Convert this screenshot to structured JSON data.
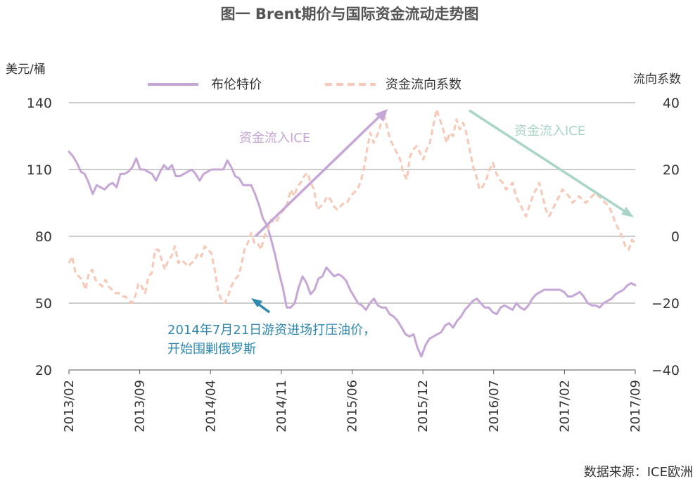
{
  "chart_data": {
    "type": "line",
    "title": "图一 Brent期价与国际资金流动走势图",
    "left_unit": "美元/桶",
    "right_unit": "流向系数",
    "left_axis": {
      "min": 20,
      "max": 140,
      "ticks": [
        140,
        110,
        80,
        50,
        20
      ]
    },
    "right_axis": {
      "min": -40,
      "max": 40,
      "ticks": [
        40,
        20,
        0,
        -20,
        -40
      ],
      "tick_labels": [
        "40",
        "20",
        "0",
        "−20",
        "−40"
      ]
    },
    "x_labels": [
      "2013/02",
      "2013/09",
      "2014/04",
      "2014/11",
      "2015/06",
      "2015/12",
      "2016/07",
      "2017/02",
      "2017/09"
    ],
    "source": "数据来源：ICE欧洲",
    "series": [
      {
        "name": "布伦特价",
        "axis": "left",
        "color": "#c6a6d6",
        "style": "solid",
        "values": [
          118,
          116,
          113,
          109,
          108,
          104,
          99,
          103,
          102,
          101,
          103,
          104,
          102,
          108,
          108,
          109,
          111,
          115,
          110,
          110,
          109,
          108,
          105,
          109,
          112,
          110,
          112,
          107,
          107,
          108,
          109,
          110,
          108,
          105,
          108,
          109,
          110,
          110,
          110,
          110,
          114,
          111,
          107,
          106,
          103,
          103,
          103,
          99,
          94,
          88,
          85,
          79,
          72,
          64,
          57,
          48,
          48,
          50,
          57,
          62,
          59,
          54,
          56,
          61,
          62,
          66,
          64,
          62,
          63,
          62,
          60,
          56,
          53,
          50,
          49,
          47,
          50,
          52,
          49,
          48,
          48,
          45,
          44,
          42,
          39,
          36,
          35,
          36,
          30,
          26,
          31,
          34,
          35,
          36,
          37,
          40,
          41,
          39,
          42,
          44,
          47,
          49,
          51,
          52,
          50,
          48,
          48,
          46,
          45,
          48,
          49,
          48,
          47,
          50,
          48,
          47,
          49,
          52,
          54,
          55,
          56,
          56,
          56,
          56,
          56,
          55,
          53,
          53,
          54,
          55,
          53,
          50,
          49,
          49,
          48,
          50,
          51,
          52,
          54,
          55,
          56,
          58,
          59,
          58
        ]
      },
      {
        "name": "资金流向系数",
        "axis": "right",
        "color": "#f8c7b5",
        "style": "dashed",
        "values": [
          -8,
          -6,
          -11,
          -12,
          -13,
          -16,
          -11,
          -10,
          -13,
          -14,
          -15,
          -13,
          -15,
          -16,
          -17,
          -17,
          -18,
          -18,
          -19,
          -20,
          -18,
          -14,
          -15,
          -17,
          -12,
          -11,
          -4,
          -4,
          -7,
          -10,
          -7,
          -6,
          -3,
          -8,
          -7,
          -8,
          -9,
          -8,
          -7,
          -5,
          -6,
          -3,
          -4,
          -5,
          -10,
          -16,
          -19,
          -20,
          -18,
          -15,
          -13,
          -12,
          -9,
          -4,
          -2,
          1,
          -2,
          -2,
          -4,
          0,
          2,
          5,
          4,
          5,
          7,
          8,
          10,
          14,
          12,
          15,
          16,
          18,
          19,
          16,
          14,
          8,
          9,
          10,
          12,
          11,
          9,
          8,
          9,
          10,
          10,
          12,
          13,
          14,
          16,
          20,
          26,
          31,
          28,
          30,
          33,
          37,
          33,
          29,
          27,
          25,
          23,
          19,
          17,
          24,
          26,
          27,
          25,
          23,
          26,
          28,
          33,
          38,
          35,
          32,
          28,
          31,
          30,
          35,
          32,
          34,
          31,
          26,
          21,
          18,
          14,
          15,
          17,
          20,
          22,
          19,
          17,
          16,
          14,
          15,
          16,
          12,
          10,
          8,
          6,
          9,
          12,
          14,
          16,
          12,
          8,
          6,
          8,
          10,
          12,
          14,
          13,
          12,
          10,
          11,
          12,
          11,
          10,
          11,
          12,
          13,
          12,
          11,
          10,
          9,
          7,
          4,
          2,
          0,
          -3,
          -4,
          -1,
          -2
        ]
      }
    ],
    "annotations": [
      {
        "text": "资金流入ICE",
        "color": "#c6a6d6"
      },
      {
        "text": "资金流入ICE",
        "color": "#a8d5c8"
      },
      {
        "line1": "2014年7月21日游资进场打压油价，",
        "line2": "开始围剿俄罗斯",
        "color": "#2e88b0"
      }
    ]
  }
}
